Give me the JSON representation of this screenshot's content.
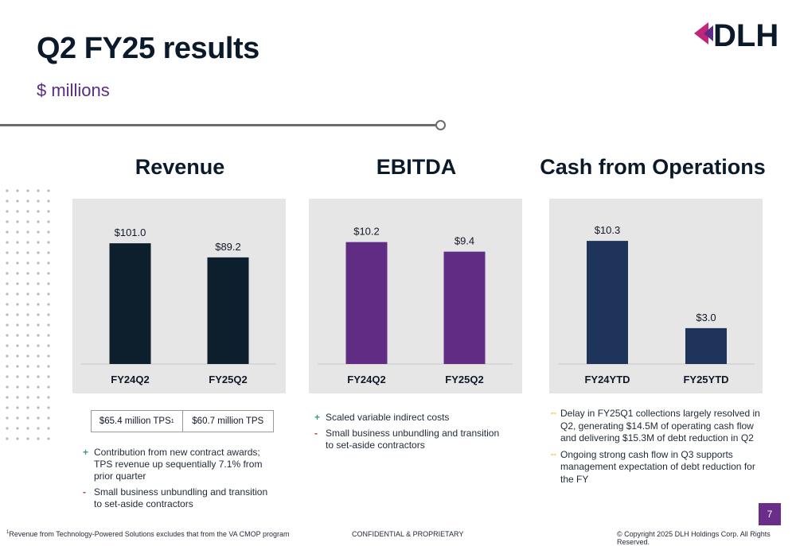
{
  "header": {
    "title": "Q2 FY25 results",
    "subtitle": "$ millions",
    "logo_text": "DLH"
  },
  "colors": {
    "revenue_bar": "#0d1f2d",
    "ebitda_bar": "#612c83",
    "cash_bar": "#1f345a",
    "panel_bg": "#e6e6e6",
    "accent_purple": "#5b2c86",
    "plus_marker": "#3b9a88",
    "minus_marker": "#c0392b",
    "neutral_marker": "#e0a800"
  },
  "panels": [
    {
      "title": "Revenue"
    },
    {
      "title": "EBITDA"
    },
    {
      "title": "Cash from Operations"
    }
  ],
  "chart_data": [
    {
      "type": "bar",
      "title": "Revenue",
      "categories": [
        "FY24Q2",
        "FY25Q2"
      ],
      "values": [
        101.0,
        89.2
      ],
      "value_labels": [
        "$101.0",
        "$89.2"
      ],
      "ylim": [
        0,
        125
      ]
    },
    {
      "type": "bar",
      "title": "EBITDA",
      "categories": [
        "FY24Q2",
        "FY25Q2"
      ],
      "values": [
        10.2,
        9.4
      ],
      "value_labels": [
        "$10.2",
        "$9.4"
      ],
      "ylim": [
        0,
        12.5
      ]
    },
    {
      "type": "bar",
      "title": "Cash from Operations",
      "categories": [
        "FY24YTD",
        "FY25YTD"
      ],
      "values": [
        10.3,
        3.0
      ],
      "value_labels": [
        "$10.3",
        "$3.0"
      ],
      "ylim": [
        0,
        12.5
      ]
    }
  ],
  "tps": {
    "left": "$65.4 million TPS",
    "left_sup": "1",
    "right": "$60.7 million TPS"
  },
  "revenue_bullets": [
    {
      "marker": "+",
      "kind": "plus",
      "text": "Contribution from new contract awards; TPS revenue up sequentially 7.1% from prior quarter"
    },
    {
      "marker": "-",
      "kind": "minus",
      "text": "Small business unbundling and transition to set-aside contractors"
    }
  ],
  "ebitda_bullets": [
    {
      "marker": "+",
      "kind": "plus",
      "text": "Scaled variable indirect costs"
    },
    {
      "marker": "-",
      "kind": "minus",
      "text": "Small business unbundling and transition to set-aside contractors"
    }
  ],
  "cash_bullets": [
    {
      "marker": "⇔",
      "kind": "neutral",
      "text": "Delay in FY25Q1 collections largely resolved in Q2, generating $14.5M of operating cash flow and delivering $15.3M of debt reduction in Q2"
    },
    {
      "marker": "⇔",
      "kind": "neutral",
      "text": "Ongoing strong cash flow in Q3 supports management expectation of debt reduction for the FY"
    }
  ],
  "footer": {
    "footnote_sup": "1",
    "footnote": "Revenue from Technology-Powered Solutions excludes that from the VA CMOP program",
    "center": "CONFIDENTIAL & PROPRIETARY",
    "copyright": "© Copyright 2025 DLH Holdings Corp. All Rights Reserved.",
    "page": "7"
  }
}
